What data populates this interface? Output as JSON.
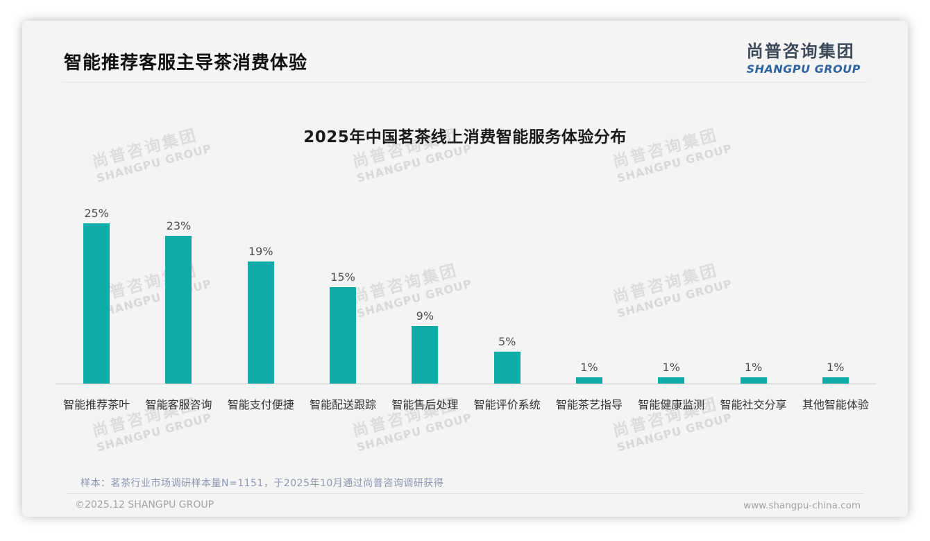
{
  "page": {
    "title": "智能推荐客服主导茶消费体验"
  },
  "logo": {
    "cn": "尚普咨询集团",
    "en": "SHANGPU GROUP"
  },
  "watermark": {
    "cn": "尚普咨询集团",
    "en": "SHANGPU GROUP"
  },
  "chart_data": {
    "type": "bar",
    "title": "2025年中国茗茶线上消费智能服务体验分布",
    "categories": [
      "智能推荐茶叶",
      "智能客服咨询",
      "智能支付便捷",
      "智能配送跟踪",
      "智能售后处理",
      "智能评价系统",
      "智能茶艺指导",
      "智能健康监测",
      "智能社交分享",
      "其他智能体验"
    ],
    "values": [
      25,
      23,
      19,
      15,
      9,
      5,
      1,
      1,
      1,
      1
    ],
    "value_labels": [
      "25%",
      "23%",
      "19%",
      "15%",
      "9%",
      "5%",
      "1%",
      "1%",
      "1%",
      "1%"
    ],
    "unit": "%",
    "bar_color": "#0DACA6",
    "ylim": [
      0,
      25
    ],
    "grid": false,
    "legend": null,
    "xlabel": "",
    "ylabel": ""
  },
  "footer": {
    "note": "样本：茗茶行业市场调研样本量N=1151，于2025年10月通过尚普咨询调研获得",
    "copyright": "©2025.12 SHANGPU GROUP",
    "website": "www.shangpu-china.com"
  }
}
